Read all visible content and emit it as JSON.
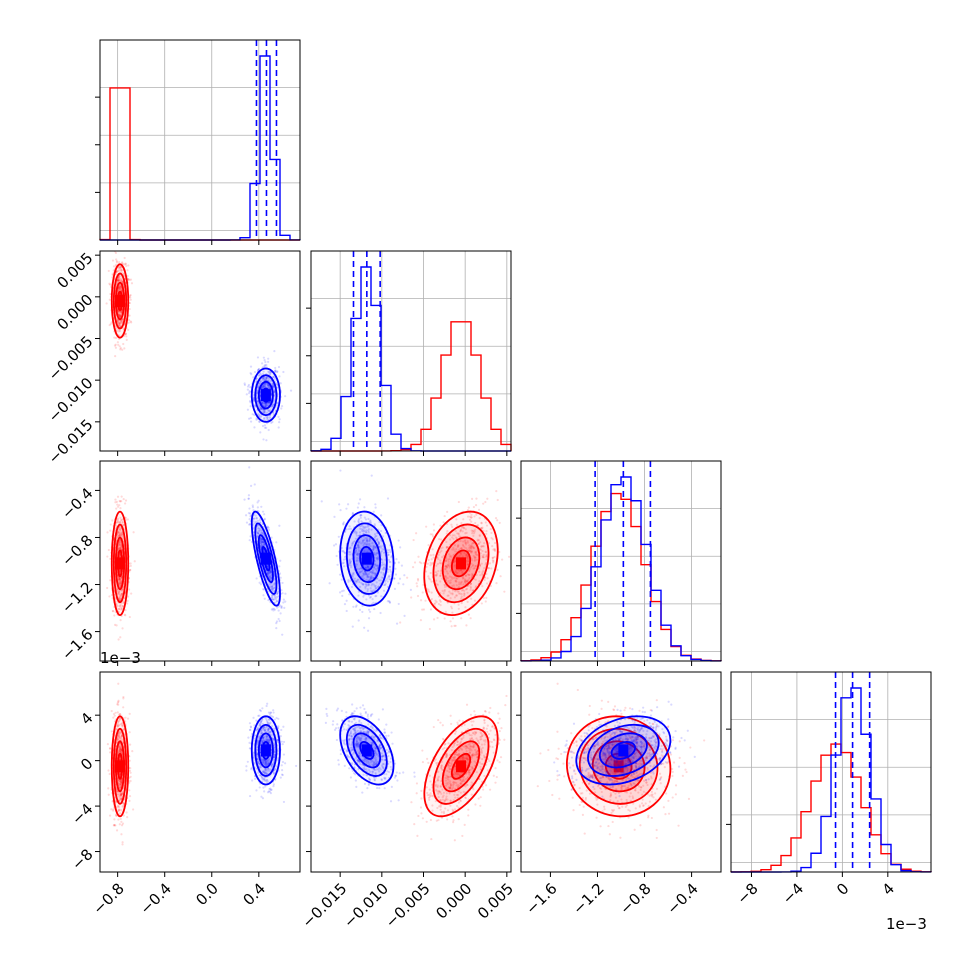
{
  "chart_data": {
    "type": "corner",
    "title": "",
    "series_colors": {
      "red": "#ff0000",
      "blue": "#0000ff"
    },
    "series": [
      {
        "name": "red",
        "color": "#ff0000",
        "mean": [
          -0.78,
          -0.0005,
          -0.00102,
          -0.0005
        ],
        "sd": [
          0.035,
          0.0022,
          0.00022,
          0.0022
        ],
        "rho": {
          "0-1": 0.0,
          "0-2": 0.0,
          "0-3": 0.0,
          "1-2": 0.25,
          "1-3": 0.55,
          "2-3": -0.05
        }
      },
      {
        "name": "blue",
        "color": "#0000ff",
        "mean": [
          0.46,
          -0.0118,
          -0.00098,
          0.0009
        ],
        "sd": [
          0.06,
          0.0016,
          0.0002,
          0.0015
        ],
        "rho": {
          "0-1": 0.0,
          "0-2": -0.75,
          "0-3": 0.0,
          "1-2": -0.1,
          "1-3": -0.45,
          "2-3": 0.3
        }
      }
    ],
    "params": [
      {
        "range": [
          -0.95,
          0.75
        ],
        "ticks": [
          -0.8,
          -0.4,
          0.0,
          0.4
        ],
        "tick_labels": [
          "−0.8",
          "−0.4",
          "0.0",
          "0.4"
        ]
      },
      {
        "range": [
          -0.0185,
          0.0055
        ],
        "ticks": [
          -0.015,
          -0.01,
          -0.005,
          0.0,
          0.005
        ],
        "tick_labels": [
          "−0.015",
          "−0.010",
          "−0.005",
          "0.000",
          "0.005"
        ]
      },
      {
        "range": [
          -0.00185,
          -0.00015
        ],
        "ticks": [
          -0.0016,
          -0.0012,
          -0.0008,
          -0.0004
        ],
        "tick_labels": [
          "−1.6",
          "−1.2",
          "−0.8",
          "−0.4"
        ]
      },
      {
        "range": [
          -0.0098,
          0.0078
        ],
        "ticks": [
          -0.008,
          -0.004,
          0.0,
          0.004
        ],
        "tick_labels": [
          "−8",
          "−4",
          "0",
          "4"
        ]
      }
    ],
    "quantile_lines": [
      [
        0.38,
        0.465,
        0.55
      ],
      [
        -0.0134,
        -0.0118,
        -0.0102
      ],
      [
        -0.00122,
        -0.00098,
        -0.00075
      ],
      [
        -0.0006,
        0.0009,
        0.0024
      ]
    ],
    "bins": 20,
    "exponent_labels": {
      "param3_y": "1e−3",
      "param4_x": "1e−3"
    }
  }
}
